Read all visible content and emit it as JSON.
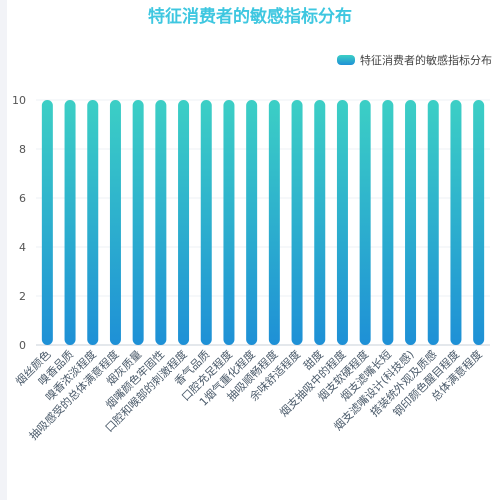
{
  "chart_data": {
    "type": "bar",
    "title": "特征消费者的敏感指标分布",
    "legend_position": "top-right",
    "series": [
      {
        "name": "特征消费者的敏感指标分布",
        "values": [
          10,
          10,
          10,
          10,
          10,
          10,
          10,
          10,
          10,
          10,
          10,
          10,
          10,
          10,
          10,
          10,
          10,
          10,
          10,
          10
        ]
      }
    ],
    "categories": [
      "烟丝颜色",
      "嗅香品质",
      "嗅香浓淡程度",
      "抽吸感受的总体满意程度",
      "烟灰质量",
      "烟嘴颜色牢固性",
      "口腔和喉部的刺激程度",
      "香气品质",
      "口腔充足程度",
      "1烟气重化程度",
      "抽吸顺畅程度",
      "余味舒适程度",
      "甜度",
      "烟支抽吸中的程度",
      "烟支软硬程度",
      "烟支滤嘴长短",
      "烟支滤嘴设计(科技感)",
      "搭装统外观及质感",
      "钢印颜色醒目程度",
      "总体满意程度"
    ],
    "yticks": [
      0,
      2,
      4,
      6,
      8,
      10
    ],
    "ylim": [
      0,
      10
    ],
    "grid": true,
    "colors": {
      "bar_top": "#3ccfc5",
      "bar_bottom": "#1e90d6",
      "title": "#3ec7e0"
    }
  }
}
